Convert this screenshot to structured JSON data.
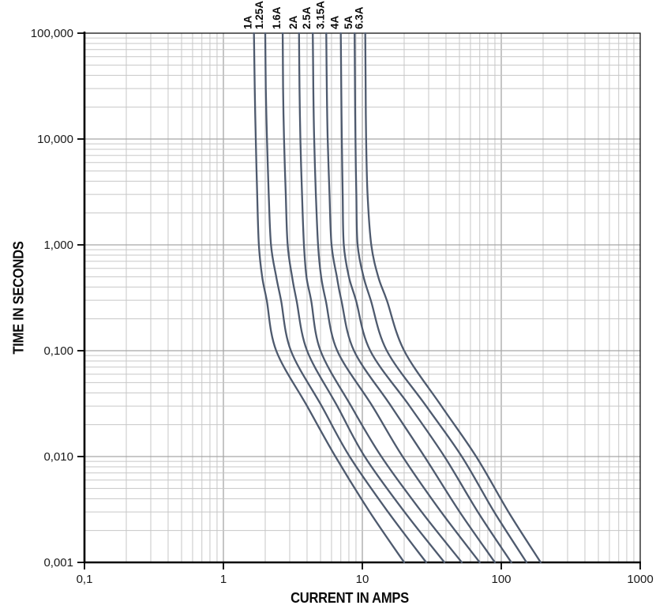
{
  "chart_data": {
    "type": "line",
    "title": "",
    "xlabel": "CURRENT IN AMPS",
    "ylabel": "TIME IN SECONDS",
    "x_scale": "log",
    "y_scale": "log",
    "xlim": [
      0.1,
      1000
    ],
    "ylim": [
      0.001,
      100
    ],
    "grid": "on",
    "x_ticks": [
      {
        "value": 0.1,
        "label": "0,1"
      },
      {
        "value": 1,
        "label": "1"
      },
      {
        "value": 10,
        "label": "10"
      },
      {
        "value": 100,
        "label": "100"
      },
      {
        "value": 1000,
        "label": "1000"
      }
    ],
    "y_ticks": [
      {
        "value": 100,
        "label": "100,000"
      },
      {
        "value": 10,
        "label": "10,000"
      },
      {
        "value": 1,
        "label": "1,000"
      },
      {
        "value": 0.1,
        "label": "0,100"
      },
      {
        "value": 0.01,
        "label": "0,010"
      },
      {
        "value": 0.001,
        "label": "0,001"
      }
    ],
    "legend_position": "labels-above-plot",
    "series_note": "points are [current_amps, time_seconds] along each fuse melting curve",
    "series": [
      {
        "name": "1A",
        "points": [
          [
            1.66,
            100
          ],
          [
            1.68,
            30
          ],
          [
            1.71,
            10
          ],
          [
            1.75,
            3
          ],
          [
            1.8,
            1
          ],
          [
            1.9,
            0.5
          ],
          [
            2.05,
            0.3
          ],
          [
            2.4,
            0.1
          ],
          [
            4.0,
            0.03
          ],
          [
            6.4,
            0.01
          ],
          [
            11.3,
            0.003
          ],
          [
            20,
            0.001
          ]
        ]
      },
      {
        "name": "1.25A",
        "points": [
          [
            2.0,
            100
          ],
          [
            2.02,
            30
          ],
          [
            2.06,
            10
          ],
          [
            2.12,
            3
          ],
          [
            2.2,
            1
          ],
          [
            2.4,
            0.5
          ],
          [
            2.6,
            0.3
          ],
          [
            3.06,
            0.1
          ],
          [
            5.1,
            0.03
          ],
          [
            8.1,
            0.01
          ],
          [
            15.3,
            0.003
          ],
          [
            28.8,
            0.001
          ]
        ]
      },
      {
        "name": "1.6A",
        "points": [
          [
            2.67,
            100
          ],
          [
            2.69,
            30
          ],
          [
            2.73,
            10
          ],
          [
            2.81,
            3
          ],
          [
            2.9,
            1
          ],
          [
            3.12,
            0.5
          ],
          [
            3.36,
            0.3
          ],
          [
            4.0,
            0.1
          ],
          [
            6.6,
            0.03
          ],
          [
            10.4,
            0.01
          ],
          [
            20.1,
            0.003
          ],
          [
            39,
            0.001
          ]
        ]
      },
      {
        "name": "2A",
        "points": [
          [
            3.5,
            100
          ],
          [
            3.53,
            30
          ],
          [
            3.58,
            10
          ],
          [
            3.68,
            3
          ],
          [
            3.8,
            1
          ],
          [
            3.96,
            0.5
          ],
          [
            4.28,
            0.3
          ],
          [
            5.0,
            0.1
          ],
          [
            8.3,
            0.03
          ],
          [
            13.7,
            0.01
          ],
          [
            26.7,
            0.003
          ],
          [
            52,
            0.001
          ]
        ]
      },
      {
        "name": "2.5A",
        "points": [
          [
            4.4,
            100
          ],
          [
            4.44,
            30
          ],
          [
            4.5,
            10
          ],
          [
            4.63,
            3
          ],
          [
            4.8,
            1
          ],
          [
            5.05,
            0.5
          ],
          [
            5.45,
            0.3
          ],
          [
            6.6,
            0.1
          ],
          [
            11.8,
            0.03
          ],
          [
            19.5,
            0.01
          ],
          [
            36.9,
            0.003
          ],
          [
            70,
            0.001
          ]
        ]
      },
      {
        "name": "3.15A",
        "points": [
          [
            5.5,
            100
          ],
          [
            5.55,
            30
          ],
          [
            5.63,
            10
          ],
          [
            5.8,
            3
          ],
          [
            6.0,
            1
          ],
          [
            6.55,
            0.5
          ],
          [
            7.06,
            0.3
          ],
          [
            8.7,
            0.1
          ],
          [
            16.1,
            0.03
          ],
          [
            28,
            0.01
          ],
          [
            50.2,
            0.003
          ],
          [
            90,
            0.001
          ]
        ]
      },
      {
        "name": "4A",
        "points": [
          [
            7.0,
            100
          ],
          [
            7.05,
            30
          ],
          [
            7.12,
            10
          ],
          [
            7.22,
            3
          ],
          [
            7.35,
            1
          ],
          [
            8.0,
            0.5
          ],
          [
            9.0,
            0.3
          ],
          [
            11.4,
            0.1
          ],
          [
            21.9,
            0.03
          ],
          [
            39,
            0.01
          ],
          [
            67.8,
            0.003
          ],
          [
            118,
            0.001
          ]
        ]
      },
      {
        "name": "5A",
        "points": [
          [
            8.8,
            100
          ],
          [
            8.85,
            30
          ],
          [
            8.92,
            10
          ],
          [
            9.05,
            3
          ],
          [
            9.25,
            1
          ],
          [
            10.2,
            0.5
          ],
          [
            11.5,
            0.3
          ],
          [
            15.0,
            0.1
          ],
          [
            28.8,
            0.03
          ],
          [
            52,
            0.01
          ],
          [
            88.9,
            0.003
          ],
          [
            152,
            0.001
          ]
        ]
      },
      {
        "name": "6.3A",
        "points": [
          [
            10.5,
            100
          ],
          [
            10.56,
            30
          ],
          [
            10.65,
            10
          ],
          [
            10.9,
            3
          ],
          [
            11.6,
            1
          ],
          [
            13.0,
            0.5
          ],
          [
            15.0,
            0.3
          ],
          [
            20.0,
            0.1
          ],
          [
            37.1,
            0.03
          ],
          [
            66,
            0.01
          ],
          [
            112.6,
            0.003
          ],
          [
            192,
            0.001
          ]
        ]
      }
    ],
    "colors": {
      "curve": "#4e5a6e",
      "grid_minor": "#c7c7c7",
      "grid_major": "#a6a6a6",
      "axis": "#000000",
      "text": "#1a1a1a"
    }
  }
}
